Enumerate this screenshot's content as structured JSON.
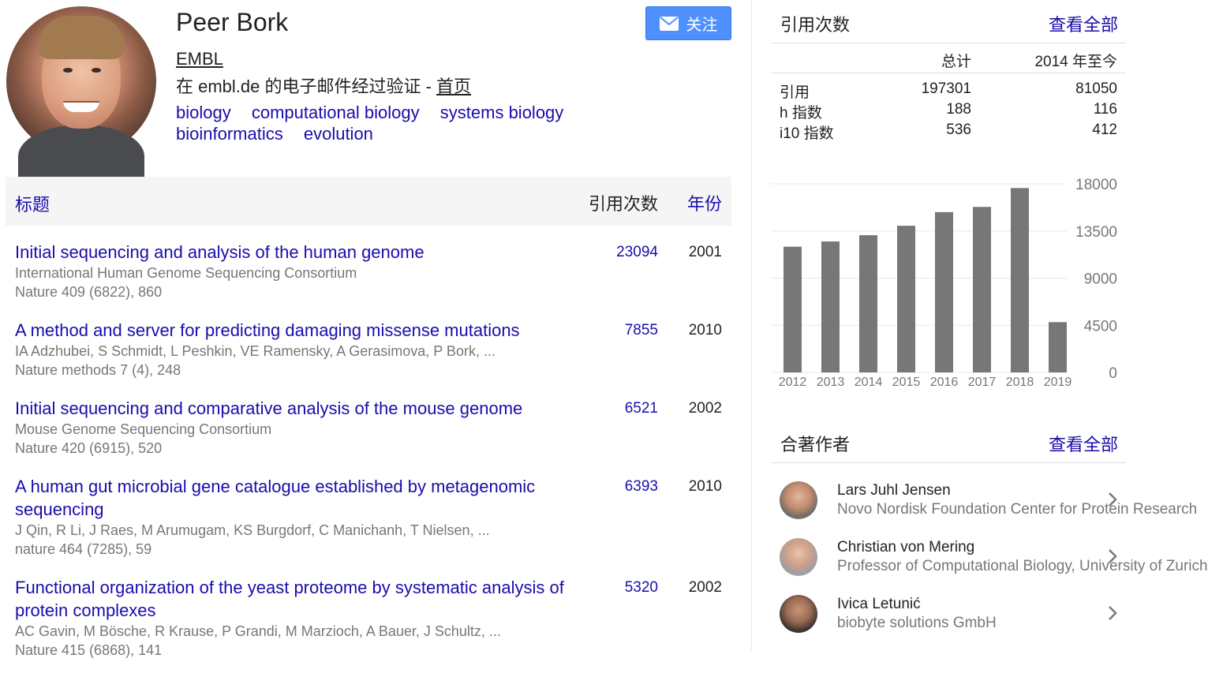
{
  "profile": {
    "name": "Peer Bork",
    "affiliation": "EMBL",
    "verified_text": "在 embl.de 的电子邮件经过验证 - ",
    "homepage_label": "首页",
    "interests": [
      "biology",
      "computational biology",
      "systems biology",
      "bioinformatics",
      "evolution"
    ],
    "follow_label": "关注"
  },
  "table": {
    "col_title": "标题",
    "col_cited": "引用次数",
    "col_year": "年份",
    "rows": [
      {
        "title": "Initial sequencing and analysis of the human genome",
        "authors": "International Human Genome Sequencing Consortium",
        "venue": "Nature 409 (6822), 860",
        "cited": "23094",
        "year": "2001"
      },
      {
        "title": "A method and server for predicting damaging missense mutations",
        "authors": "IA Adzhubei, S Schmidt, L Peshkin, VE Ramensky, A Gerasimova, P Bork, ...",
        "venue": "Nature methods 7 (4), 248",
        "cited": "7855",
        "year": "2010"
      },
      {
        "title": "Initial sequencing and comparative analysis of the mouse genome",
        "authors": "Mouse Genome Sequencing Consortium",
        "venue": "Nature 420 (6915), 520",
        "cited": "6521",
        "year": "2002"
      },
      {
        "title": "A human gut microbial gene catalogue established by metagenomic sequencing",
        "authors": "J Qin, R Li, J Raes, M Arumugam, KS Burgdorf, C Manichanh, T Nielsen, ...",
        "venue": "nature 464 (7285), 59",
        "cited": "6393",
        "year": "2010"
      },
      {
        "title": "Functional organization of the yeast proteome by systematic analysis of protein complexes",
        "authors": "AC Gavin, M Bösche, R Krause, P Grandi, M Marzioch, A Bauer, J Schultz, ...",
        "venue": "Nature 415 (6868), 141",
        "cited": "5320",
        "year": "2002"
      }
    ]
  },
  "citations": {
    "title": "引用次数",
    "view_all": "查看全部",
    "col_total": "总计",
    "col_since": "2014 年至今",
    "rows": [
      {
        "label": "引用",
        "total": "197301",
        "since": "81050"
      },
      {
        "label": "h 指数",
        "total": "188",
        "since": "116"
      },
      {
        "label": "i10 指数",
        "total": "536",
        "since": "412"
      }
    ]
  },
  "chart_data": {
    "type": "bar",
    "categories": [
      "2012",
      "2013",
      "2014",
      "2015",
      "2016",
      "2017",
      "2018",
      "2019"
    ],
    "values": [
      12000,
      12500,
      13100,
      14000,
      15300,
      15800,
      17600,
      4800
    ],
    "yticks": [
      "0",
      "4500",
      "9000",
      "13500",
      "18000"
    ],
    "ylim": [
      0,
      18000
    ],
    "bar_color": "#777777"
  },
  "coauthors": {
    "title": "合著作者",
    "view_all": "查看全部",
    "items": [
      {
        "name": "Lars Juhl Jensen",
        "affiliation": "Novo Nordisk Foundation Center for Protein Research"
      },
      {
        "name": "Christian von Mering",
        "affiliation": "Professor of Computational Biology, University of Zurich"
      },
      {
        "name": "Ivica Letunić",
        "affiliation": "biobyte solutions GmbH"
      }
    ]
  },
  "colors": {
    "link": "#1a0dab",
    "button": "#4d90fe",
    "muted": "#777777"
  }
}
